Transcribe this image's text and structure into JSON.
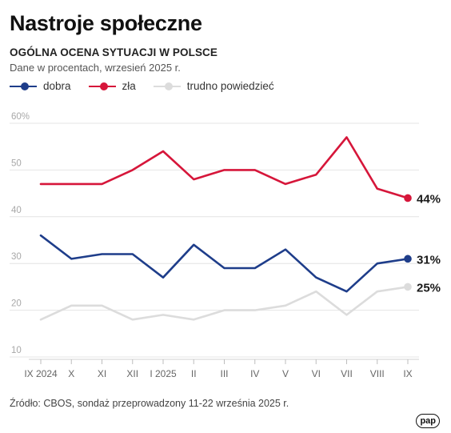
{
  "header": {
    "title": "Nastroje społeczne",
    "subtitle": "OGÓLNA OCENA SYTUACJI W POLSCE",
    "note": "Dane w procentach, wrzesień 2025 r."
  },
  "legend": [
    {
      "label": "dobra",
      "color": "#1e3d8a"
    },
    {
      "label": "zła",
      "color": "#d6163a"
    },
    {
      "label": "trudno powiedzieć",
      "color": "#dcdcdc"
    }
  ],
  "chart_data": {
    "type": "line",
    "categories": [
      "IX 2024",
      "X",
      "XI",
      "XII",
      "I 2025",
      "II",
      "III",
      "IV",
      "V",
      "VI",
      "VII",
      "VIII",
      "IX"
    ],
    "y_ticks": [
      "60%",
      "50",
      "40",
      "30",
      "20",
      "10"
    ],
    "ylim": [
      10,
      60
    ],
    "grid": true,
    "series": [
      {
        "name": "zła",
        "color": "#d6163a",
        "values": [
          47,
          47,
          47,
          50,
          54,
          48,
          50,
          50,
          47,
          49,
          57,
          46,
          44
        ],
        "end_label": "44%"
      },
      {
        "name": "dobra",
        "color": "#1e3d8a",
        "values": [
          36,
          31,
          32,
          32,
          27,
          34,
          29,
          29,
          33,
          27,
          24,
          30,
          31
        ],
        "end_label": "31%"
      },
      {
        "name": "trudno powiedzieć",
        "color": "#dcdcdc",
        "values": [
          18,
          21,
          21,
          18,
          19,
          18,
          20,
          20,
          21,
          24,
          19,
          24,
          25
        ],
        "end_label": "25%"
      }
    ]
  },
  "footer": {
    "source": "Źródło: CBOS, sondaż przeprowadzony 11-22 września 2025 r.",
    "logo": "pap"
  }
}
